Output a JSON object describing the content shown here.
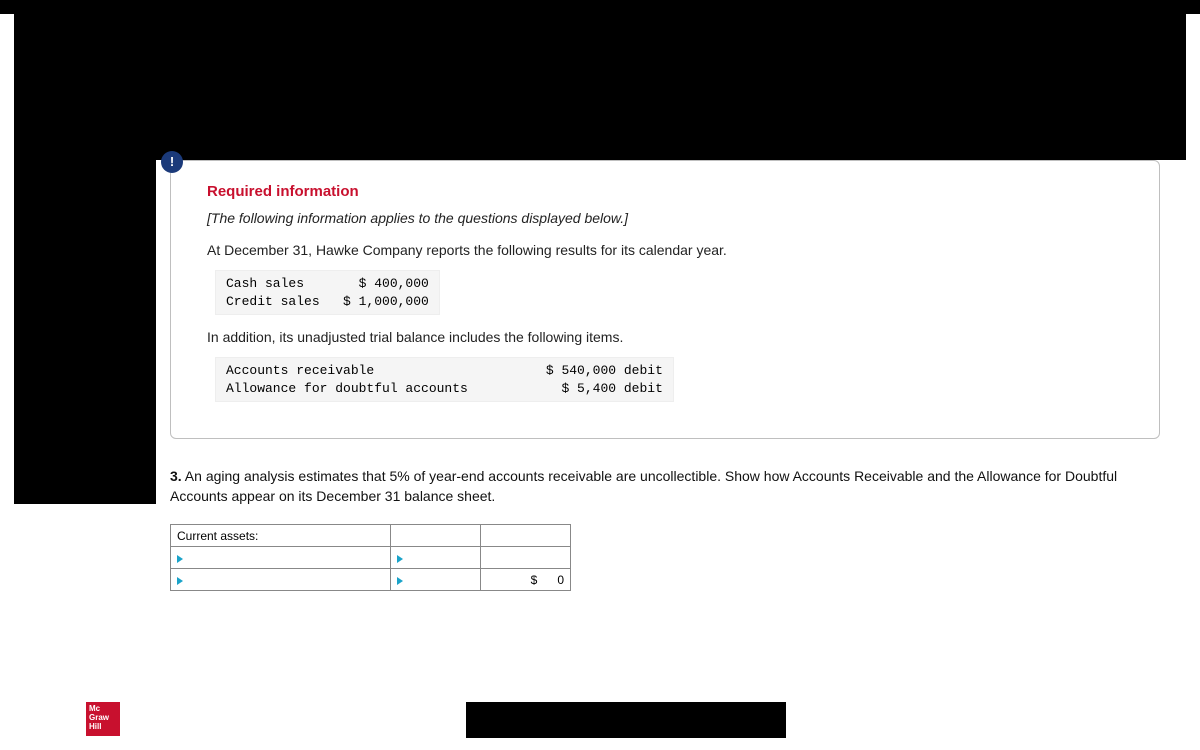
{
  "badge": {
    "symbol": "!"
  },
  "info": {
    "title": "Required information",
    "italic_note": "[The following information applies to the questions displayed below.]",
    "intro_line": "At December 31, Hawke Company reports the following results for its calendar year.",
    "sales_block": "Cash sales       $ 400,000\nCredit sales   $ 1,000,000",
    "mid_line": "In addition, its unadjusted trial balance includes the following items.",
    "balance_block": "Accounts receivable                      $ 540,000 debit\nAllowance for doubtful accounts            $ 5,400 debit"
  },
  "question": {
    "number": "3.",
    "text": " An aging analysis estimates that 5% of year-end accounts receivable are uncollectible. Show how Accounts Receivable and the Allowance for Doubtful Accounts appear on its December 31 balance sheet."
  },
  "table": {
    "header_label": "Current assets:",
    "total_currency": "$",
    "total_value": "0"
  },
  "logo": {
    "line1": "Mc",
    "line2": "Graw",
    "line3": "Hill"
  }
}
